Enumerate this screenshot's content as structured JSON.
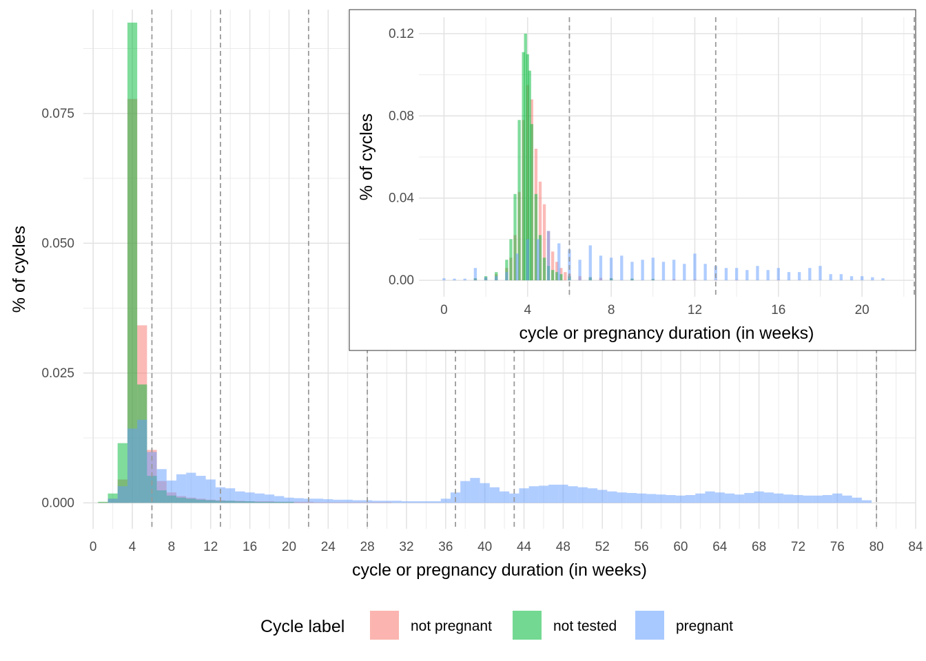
{
  "chart_data": [
    {
      "type": "bar",
      "role": "main",
      "xlabel": "cycle or pregnancy duration (in weeks)",
      "ylabel": "% of cycles",
      "xlim": [
        -1,
        84
      ],
      "ylim": [
        -0.005,
        0.095
      ],
      "x_ticks": [
        "0",
        "4",
        "8",
        "12",
        "16",
        "20",
        "24",
        "28",
        "32",
        "36",
        "40",
        "44",
        "48",
        "52",
        "56",
        "60",
        "64",
        "68",
        "72",
        "76",
        "80",
        "84"
      ],
      "y_ticks": [
        "0.000",
        "0.025",
        "0.050",
        "0.075"
      ],
      "grid": true,
      "vlines_dashed": [
        6,
        13,
        22,
        28,
        37,
        43,
        80
      ],
      "bin_width": 1,
      "series": [
        {
          "name": "not pregnant",
          "color": "#F8766D",
          "x": [
            1,
            2,
            3,
            4,
            5,
            6,
            7,
            8,
            9,
            10,
            11,
            12,
            13,
            14,
            15,
            16,
            17,
            18,
            19,
            20,
            21,
            22,
            23,
            24,
            25,
            26,
            27,
            28,
            29,
            30
          ],
          "values": [
            0.0001,
            0.0008,
            0.0045,
            0.0778,
            0.0342,
            0.0102,
            0.0042,
            0.002,
            0.0013,
            0.001,
            0.0008,
            0.0006,
            0.0005,
            0.0004,
            0.0004,
            0.0003,
            0.0003,
            0.0003,
            0.0002,
            0.0002,
            0.0002,
            0.0002,
            0.0001,
            0.0001,
            0.0001,
            0.0001,
            0.0001,
            0.0001,
            0.0001,
            0.0001
          ]
        },
        {
          "name": "not tested",
          "color": "#00BA38",
          "x": [
            1,
            2,
            3,
            4,
            5,
            6,
            7,
            8,
            9,
            10,
            11,
            12,
            13,
            14,
            15,
            16,
            17,
            18,
            19,
            20
          ],
          "values": [
            0.0002,
            0.0018,
            0.0115,
            0.0925,
            0.0228,
            0.0052,
            0.0024,
            0.0014,
            0.001,
            0.0008,
            0.0006,
            0.0005,
            0.0004,
            0.0004,
            0.0003,
            0.0003,
            0.0002,
            0.0002,
            0.0002,
            0.0002
          ]
        },
        {
          "name": "pregnant",
          "color": "#619CFF",
          "x": [
            2,
            3,
            4,
            5,
            6,
            7,
            8,
            9,
            10,
            11,
            12,
            13,
            14,
            15,
            16,
            17,
            18,
            19,
            20,
            21,
            22,
            23,
            24,
            25,
            26,
            27,
            28,
            29,
            30,
            31,
            32,
            33,
            34,
            35,
            36,
            37,
            38,
            39,
            40,
            41,
            42,
            43,
            44,
            45,
            46,
            47,
            48,
            49,
            50,
            51,
            52,
            53,
            54,
            55,
            56,
            57,
            58,
            59,
            60,
            61,
            62,
            63,
            64,
            65,
            66,
            67,
            68,
            69,
            70,
            71,
            72,
            73,
            74,
            75,
            76,
            77,
            78,
            79
          ],
          "values": [
            0.0008,
            0.0032,
            0.0143,
            0.016,
            0.0098,
            0.0065,
            0.0043,
            0.0055,
            0.0058,
            0.0052,
            0.0045,
            0.003,
            0.0028,
            0.0022,
            0.002,
            0.0018,
            0.0016,
            0.0013,
            0.001,
            0.0009,
            0.0008,
            0.0008,
            0.0007,
            0.0006,
            0.0006,
            0.0005,
            0.0005,
            0.0004,
            0.0004,
            0.0004,
            0.0003,
            0.0003,
            0.0003,
            0.0003,
            0.0008,
            0.002,
            0.0042,
            0.0048,
            0.0038,
            0.003,
            0.0022,
            0.0018,
            0.0028,
            0.0032,
            0.0033,
            0.0035,
            0.0035,
            0.0032,
            0.003,
            0.0028,
            0.0025,
            0.0022,
            0.002,
            0.0019,
            0.0018,
            0.0017,
            0.0016,
            0.0015,
            0.0014,
            0.0015,
            0.0018,
            0.0022,
            0.002,
            0.0018,
            0.0016,
            0.0019,
            0.0022,
            0.002,
            0.0018,
            0.0016,
            0.0015,
            0.0014,
            0.0014,
            0.0015,
            0.0018,
            0.0014,
            0.001,
            0.0005
          ]
        }
      ]
    },
    {
      "type": "bar",
      "role": "inset",
      "xlabel": "cycle or pregnancy duration (in weeks)",
      "ylabel": "% of cycles",
      "xlim": [
        -1.2,
        22.5
      ],
      "ylim": [
        -0.008,
        0.128
      ],
      "x_ticks": [
        "0",
        "4",
        "8",
        "12",
        "16",
        "20"
      ],
      "y_ticks": [
        "0.00",
        "0.04",
        "0.08",
        "0.12"
      ],
      "grid": true,
      "vlines_dashed": [
        6,
        13,
        22.5
      ],
      "bin_width": 0.1429,
      "series": [
        {
          "name": "not pregnant",
          "color": "#F8766D",
          "x": [
            1.5,
            2.0,
            2.5,
            3.0,
            3.2,
            3.4,
            3.6,
            3.8,
            4.0,
            4.2,
            4.4,
            4.6,
            4.8,
            5.0,
            5.2,
            5.4,
            5.6,
            5.8,
            6.0,
            6.5,
            7.0,
            7.5,
            8.0,
            9.0,
            10.0,
            11.0,
            12.0,
            13.0,
            14.0,
            16.0
          ],
          "values": [
            0.001,
            0.0015,
            0.003,
            0.006,
            0.011,
            0.022,
            0.043,
            0.078,
            0.095,
            0.088,
            0.064,
            0.048,
            0.037,
            0.024,
            0.014,
            0.009,
            0.006,
            0.004,
            0.003,
            0.002,
            0.0015,
            0.0012,
            0.001,
            0.0008,
            0.0006,
            0.0005,
            0.0004,
            0.0003,
            0.0002,
            0.0002
          ]
        },
        {
          "name": "not tested",
          "color": "#00BA38",
          "x": [
            1.5,
            2.0,
            2.5,
            3.0,
            3.2,
            3.4,
            3.6,
            3.8,
            3.9,
            4.0,
            4.1,
            4.2,
            4.4,
            4.6,
            4.8,
            5.0,
            5.2,
            5.4,
            5.6,
            6.0,
            7.0,
            8.0,
            9.0,
            10.0
          ],
          "values": [
            0.001,
            0.002,
            0.004,
            0.01,
            0.02,
            0.042,
            0.078,
            0.111,
            0.12,
            0.11,
            0.102,
            0.076,
            0.042,
            0.022,
            0.011,
            0.007,
            0.005,
            0.004,
            0.003,
            0.002,
            0.0015,
            0.001,
            0.0008,
            0.0006
          ]
        },
        {
          "name": "pregnant",
          "color": "#619CFF",
          "x": [
            0.0,
            0.5,
            1.0,
            1.5,
            2.0,
            2.5,
            3.0,
            3.5,
            4.0,
            4.5,
            5.0,
            5.5,
            6.0,
            6.5,
            7.0,
            7.5,
            8.0,
            8.5,
            9.0,
            9.5,
            10.0,
            10.5,
            11.0,
            11.5,
            12.0,
            12.5,
            13.0,
            13.5,
            14.0,
            14.5,
            15.0,
            15.5,
            16.0,
            16.5,
            17.0,
            17.5,
            18.0,
            18.5,
            19.0,
            19.5,
            20.0,
            20.5,
            21.0
          ],
          "values": [
            0.001,
            0.0008,
            0.0008,
            0.006,
            0.0015,
            0.002,
            0.004,
            0.013,
            0.02,
            0.02,
            0.024,
            0.018,
            0.015,
            0.01,
            0.017,
            0.012,
            0.011,
            0.012,
            0.009,
            0.01,
            0.011,
            0.009,
            0.01,
            0.008,
            0.013,
            0.008,
            0.007,
            0.006,
            0.006,
            0.005,
            0.007,
            0.005,
            0.006,
            0.004,
            0.004,
            0.006,
            0.007,
            0.003,
            0.003,
            0.002,
            0.002,
            0.0015,
            0.001
          ]
        }
      ]
    }
  ],
  "legend": {
    "title": "Cycle label",
    "items": [
      {
        "label": "not pregnant",
        "color": "#F8766D"
      },
      {
        "label": "not tested",
        "color": "#00BA38"
      },
      {
        "label": "pregnant",
        "color": "#619CFF"
      }
    ]
  }
}
